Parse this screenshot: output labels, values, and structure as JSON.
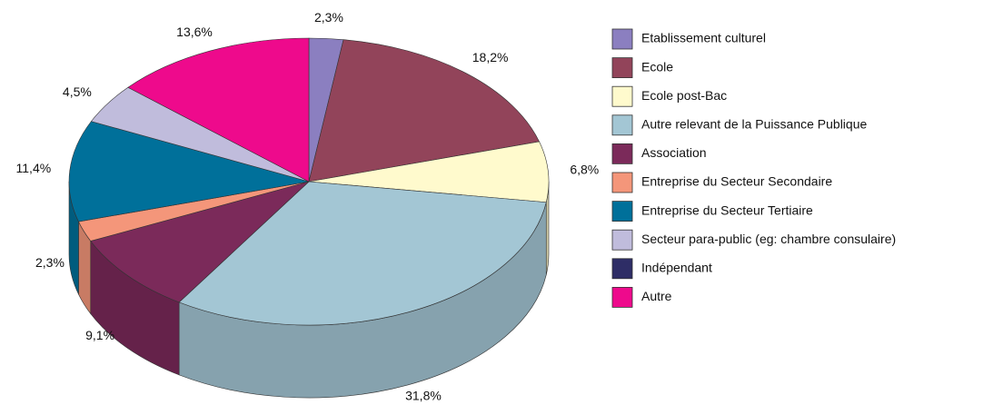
{
  "chart_data": {
    "type": "pie3d",
    "categories": [
      "Etablissement culturel",
      "Ecole",
      "Ecole post-Bac",
      "Autre relevant de la Puissance Publique",
      "Association",
      "Entreprise du Secteur Secondaire",
      "Entreprise du Secteur Tertiaire",
      "Secteur para-public (eg: chambre consulaire)",
      "Indépendant",
      "Autre"
    ],
    "values": [
      2.3,
      18.2,
      6.8,
      31.8,
      9.1,
      2.3,
      11.4,
      4.5,
      0,
      13.6
    ],
    "value_labels": [
      "2,3%",
      "18,2%",
      "6,8%",
      "31,8%",
      "9,1%",
      "2,3%",
      "11,4%",
      "4,5%",
      null,
      "13,6%"
    ],
    "colors": [
      "#8b7fc0",
      "#92445a",
      "#fffacd",
      "#a3c6d4",
      "#7b2a5a",
      "#f4967a",
      "#00709a",
      "#c0bcdc",
      "#2e2d66",
      "#ee0a8c"
    ],
    "legend": "right"
  }
}
